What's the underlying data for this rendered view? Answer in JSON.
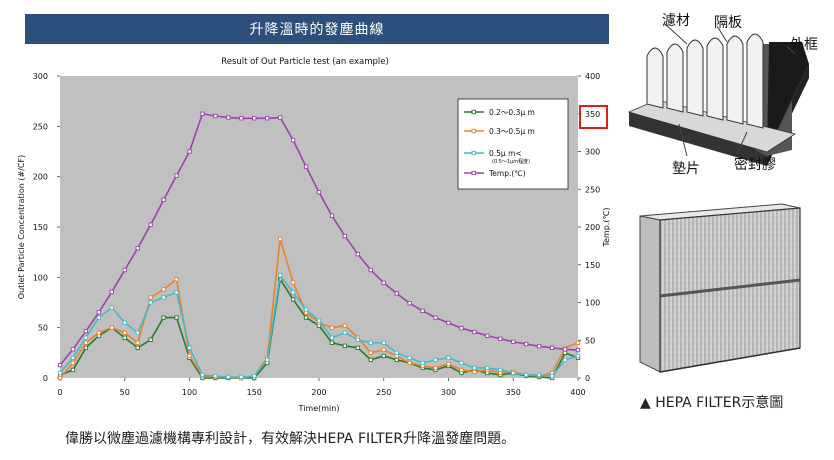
{
  "banner": {
    "title": "升降溫時的發塵曲線"
  },
  "chart_data": {
    "type": "line",
    "title": "Result of Out Particle test (an example)",
    "xlabel": "Time(min)",
    "ylabel": "Outlet Particle Concentration (#/CF)",
    "y2label": "Temp.(℃)",
    "xlim": [
      0,
      400
    ],
    "ylim": [
      0,
      300
    ],
    "y2lim": [
      0,
      400
    ],
    "xticks": [
      "0",
      "50",
      "100",
      "150",
      "200",
      "250",
      "300",
      "350",
      "400"
    ],
    "yticks": [
      "0",
      "50",
      "100",
      "150",
      "200",
      "250",
      "300"
    ],
    "y2ticks": [
      "0",
      "50",
      "100",
      "150",
      "200",
      "250",
      "300",
      "350",
      "400"
    ],
    "highlight_tick": "350",
    "legend_position": "top-right",
    "x": [
      0,
      10,
      20,
      30,
      40,
      50,
      60,
      70,
      80,
      90,
      100,
      110,
      120,
      130,
      140,
      150,
      160,
      170,
      180,
      190,
      200,
      210,
      220,
      230,
      240,
      250,
      260,
      270,
      280,
      290,
      300,
      310,
      320,
      330,
      340,
      350,
      360,
      370,
      380,
      390,
      400
    ],
    "series": [
      {
        "name": "0.2～0.3μ m",
        "color": "#2a7a2a",
        "axis": "left",
        "values": [
          3,
          8,
          30,
          42,
          50,
          40,
          30,
          38,
          60,
          60,
          20,
          0,
          0,
          0,
          0,
          0,
          15,
          98,
          78,
          60,
          52,
          35,
          32,
          30,
          18,
          22,
          18,
          15,
          10,
          8,
          12,
          5,
          8,
          5,
          3,
          5,
          2,
          1,
          0,
          25,
          20
        ]
      },
      {
        "name": "0.3～0.5μ m",
        "color": "#e8832a",
        "axis": "left",
        "values": [
          0,
          15,
          35,
          45,
          50,
          45,
          35,
          80,
          88,
          98,
          22,
          2,
          1,
          1,
          0,
          2,
          20,
          138,
          95,
          65,
          55,
          50,
          52,
          40,
          25,
          28,
          22,
          15,
          12,
          10,
          14,
          8,
          6,
          8,
          5,
          6,
          3,
          2,
          5,
          30,
          35
        ]
      },
      {
        "name": "0.5μ m<",
        "note": "(0.5～1μm程度)",
        "color": "#48b8c8",
        "axis": "left",
        "values": [
          5,
          20,
          40,
          60,
          70,
          55,
          45,
          75,
          80,
          85,
          30,
          3,
          2,
          1,
          1,
          2,
          18,
          102,
          85,
          68,
          57,
          40,
          45,
          38,
          35,
          35,
          25,
          20,
          15,
          18,
          20,
          15,
          10,
          10,
          8,
          5,
          3,
          3,
          2,
          18,
          22
        ]
      },
      {
        "name": "Temp.(℃)",
        "color": "#a040b0",
        "axis": "right",
        "values": [
          17,
          38,
          62,
          87,
          114,
          143,
          172,
          203,
          236,
          268,
          300,
          350,
          347,
          345,
          344,
          344,
          344,
          345,
          315,
          280,
          246,
          215,
          188,
          164,
          143,
          126,
          112,
          99,
          89,
          80,
          73,
          66,
          61,
          56,
          52,
          48,
          45,
          42,
          40,
          38,
          37
        ]
      }
    ]
  },
  "diagram": {
    "labels": {
      "filter_media": "濾材",
      "separator": "隔板",
      "frame": "外框",
      "gasket": "墊片",
      "sealant": "密封膠"
    }
  },
  "photo_caption": "▲ HEPA FILTER示意圖",
  "caption": "偉勝以微塵過濾機構專利設計，有效解決HEPA FILTER升降溫發塵問題。"
}
